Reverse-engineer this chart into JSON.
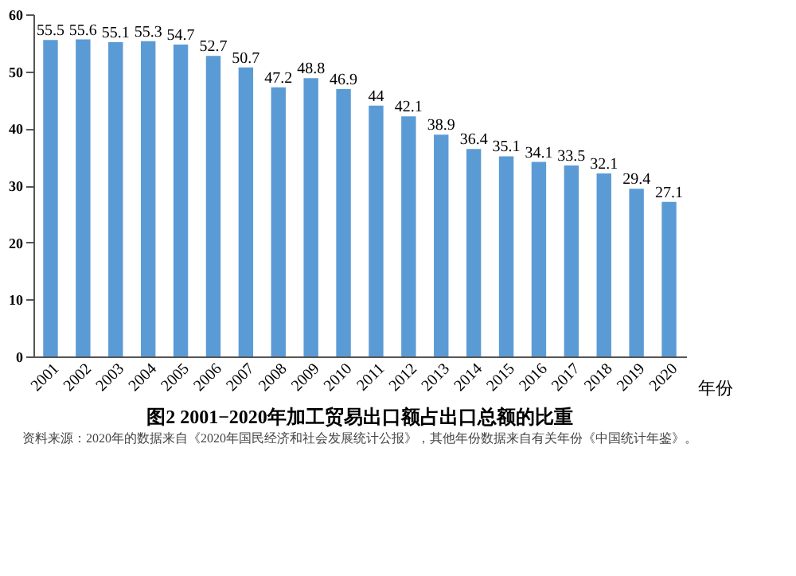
{
  "chart_data": {
    "type": "bar",
    "title": "图2  2001−2020年加工贸易出口额占出口总额的比重",
    "annotations": [
      "资料来源：2020年的数据来自《2020年国民经济和社会发展统计公报》，其他年份数据来自有关年份《中国统计年鉴》。"
    ],
    "xlabel": "年份",
    "categories": [
      "2001",
      "2002",
      "2003",
      "2004",
      "2005",
      "2006",
      "2007",
      "2008",
      "2009",
      "2010",
      "2011",
      "2012",
      "2013",
      "2014",
      "2015",
      "2016",
      "2017",
      "2018",
      "2019",
      "2020"
    ],
    "values": [
      55.5,
      55.6,
      55.1,
      55.3,
      54.7,
      52.7,
      50.7,
      47.2,
      48.8,
      46.9,
      44,
      42.1,
      38.9,
      36.4,
      35.1,
      34.1,
      33.5,
      32.1,
      29.4,
      27.1
    ],
    "color": "#5b9bd5",
    "ylim": [
      0,
      60
    ],
    "yticks": [
      0,
      10,
      20,
      30,
      40,
      50,
      60
    ],
    "data_labels": true,
    "grid": false
  }
}
